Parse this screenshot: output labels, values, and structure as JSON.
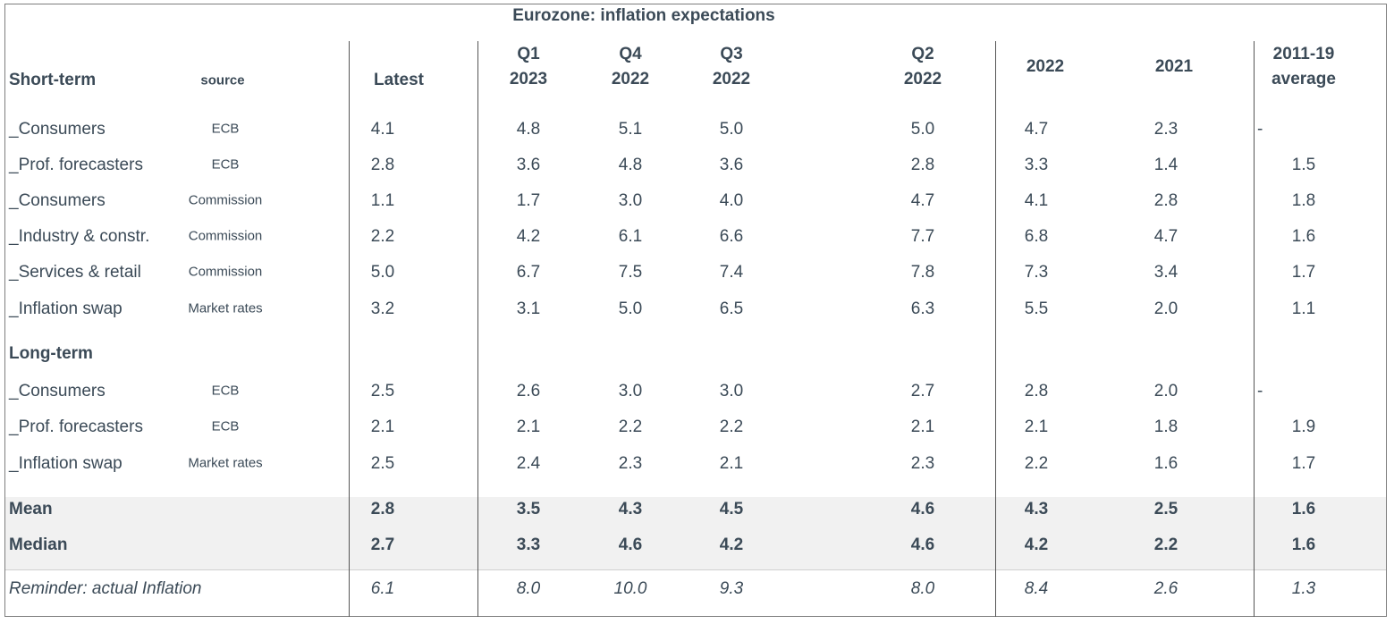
{
  "title": "Eurozone: inflation expectations",
  "columns": [
    {
      "key": "latest",
      "lines": [
        "Latest"
      ]
    },
    {
      "key": "q1_2023",
      "lines": [
        "Q1",
        "2023"
      ]
    },
    {
      "key": "q4_2022",
      "lines": [
        "Q4",
        "2022"
      ]
    },
    {
      "key": "q3_2022",
      "lines": [
        "Q3",
        "2022"
      ]
    },
    {
      "key": "q2_2022",
      "lines": [
        "Q2",
        "2022"
      ]
    },
    {
      "key": "y2022",
      "lines": [
        "2022"
      ]
    },
    {
      "key": "y2021",
      "lines": [
        "2021"
      ]
    },
    {
      "key": "avg_2011_19",
      "lines": [
        "2011-19",
        "average"
      ]
    }
  ],
  "short_term_label": "Short-term",
  "source_label": "source",
  "long_term_label": "Long-term",
  "short_term_rows": [
    {
      "name": "_Consumers",
      "source": "ECB",
      "values": [
        "4.1",
        "4.8",
        "5.1",
        "5.0",
        "5.0",
        "4.7",
        "2.3",
        "-"
      ]
    },
    {
      "name": "_Prof. forecasters",
      "source": "ECB",
      "values": [
        "2.8",
        "3.6",
        "4.8",
        "3.6",
        "2.8",
        "3.3",
        "1.4",
        "1.5"
      ]
    },
    {
      "name": "_Consumers",
      "source": "Commission",
      "values": [
        "1.1",
        "1.7",
        "3.0",
        "4.0",
        "4.7",
        "4.1",
        "2.8",
        "1.8"
      ]
    },
    {
      "name": "_Industry & constr.",
      "source": "Commission",
      "values": [
        "2.2",
        "4.2",
        "6.1",
        "6.6",
        "7.7",
        "6.8",
        "4.7",
        "1.6"
      ]
    },
    {
      "name": "_Services & retail",
      "source": "Commission",
      "values": [
        "5.0",
        "6.7",
        "7.5",
        "7.4",
        "7.8",
        "7.3",
        "3.4",
        "1.7"
      ]
    },
    {
      "name": "_Inflation swap",
      "source": "Market rates",
      "values": [
        "3.2",
        "3.1",
        "5.0",
        "6.5",
        "6.3",
        "5.5",
        "2.0",
        "1.1"
      ]
    }
  ],
  "long_term_rows": [
    {
      "name": "_Consumers",
      "source": "ECB",
      "values": [
        "2.5",
        "2.6",
        "3.0",
        "3.0",
        "2.7",
        "2.8",
        "2.0",
        "-"
      ]
    },
    {
      "name": "_Prof. forecasters",
      "source": "ECB",
      "values": [
        "2.1",
        "2.1",
        "2.2",
        "2.2",
        "2.1",
        "2.1",
        "1.8",
        "1.9"
      ]
    },
    {
      "name": "_Inflation swap",
      "source": "Market rates",
      "values": [
        "2.5",
        "2.4",
        "2.3",
        "2.1",
        "2.3",
        "2.2",
        "1.6",
        "1.7"
      ]
    }
  ],
  "summary_rows": [
    {
      "name": "Mean",
      "values": [
        "2.8",
        "3.5",
        "4.3",
        "4.5",
        "4.6",
        "4.3",
        "2.5",
        "1.6"
      ]
    },
    {
      "name": "Median",
      "values": [
        "2.7",
        "3.3",
        "4.6",
        "4.2",
        "4.6",
        "4.2",
        "2.2",
        "1.6"
      ]
    }
  ],
  "reminder_row": {
    "name": "Reminder: actual Inflation",
    "values": [
      "6.1",
      "8.0",
      "10.0",
      "9.3",
      "8.0",
      "8.4",
      "2.6",
      "1.3"
    ]
  }
}
